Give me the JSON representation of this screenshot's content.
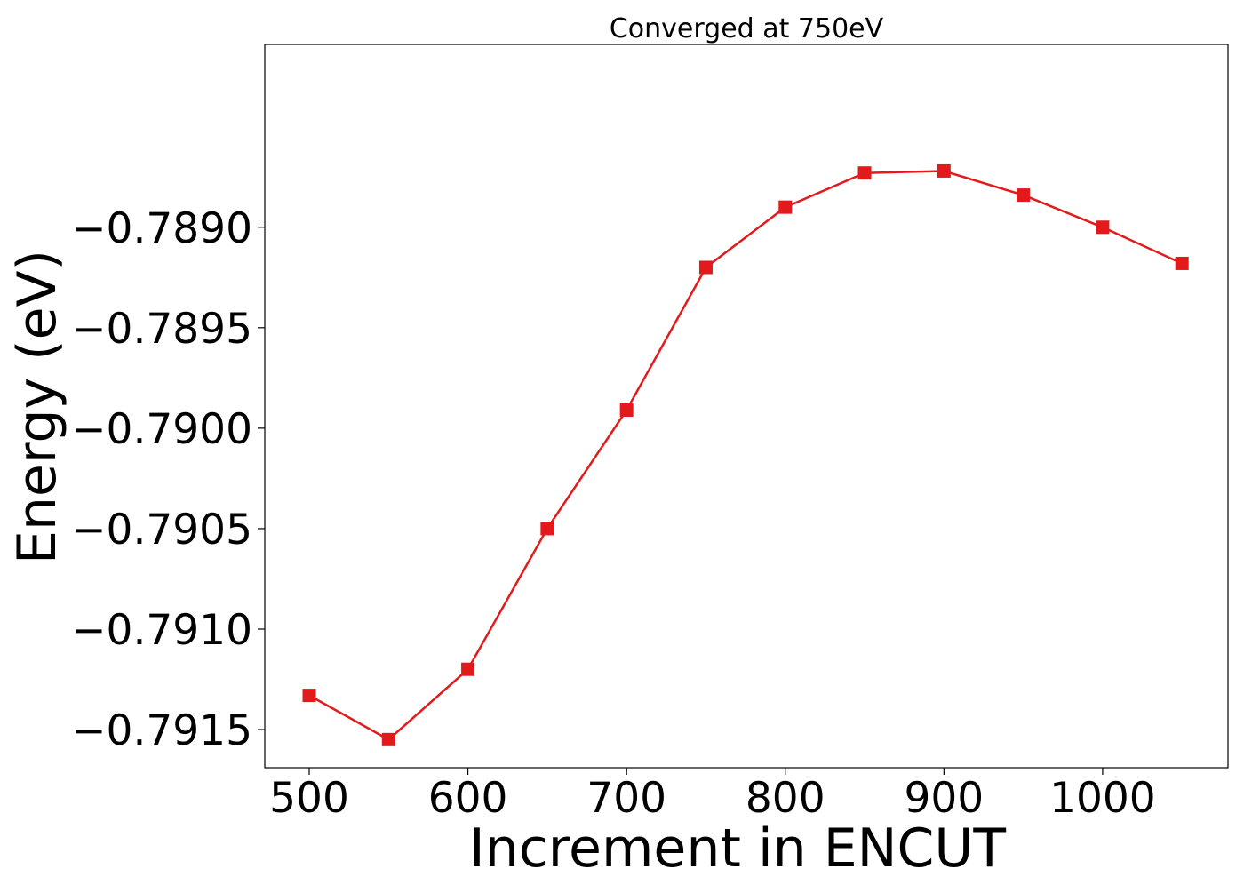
{
  "chart_data": {
    "type": "line",
    "title": "Converged at 750eV",
    "xlabel": "Increment in ENCUT",
    "ylabel": "Energy (eV)",
    "xlim": [
      472,
      1079
    ],
    "ylim": [
      -0.79169,
      -0.78809
    ],
    "x_ticks": [
      500,
      600,
      700,
      800,
      900,
      1000
    ],
    "x_tick_labels": [
      "500",
      "600",
      "700",
      "800",
      "900",
      "1000"
    ],
    "y_ticks": [
      -0.789,
      -0.7895,
      -0.79,
      -0.7905,
      -0.791,
      -0.7915
    ],
    "y_tick_labels": [
      "−0.7890",
      "−0.7895",
      "−0.7900",
      "−0.7905",
      "−0.7910",
      "−0.7915"
    ],
    "grid": false,
    "legend": "none",
    "series": [
      {
        "color": "#e31a1c",
        "marker": "square",
        "x": [
          500,
          550,
          600,
          650,
          700,
          750,
          800,
          850,
          900,
          950,
          1000,
          1050
        ],
        "y": [
          -0.79133,
          -0.79155,
          -0.7912,
          -0.7905,
          -0.78991,
          -0.7892,
          -0.7889,
          -0.78873,
          -0.78872,
          -0.78884,
          -0.789,
          -0.78918
        ]
      }
    ]
  }
}
